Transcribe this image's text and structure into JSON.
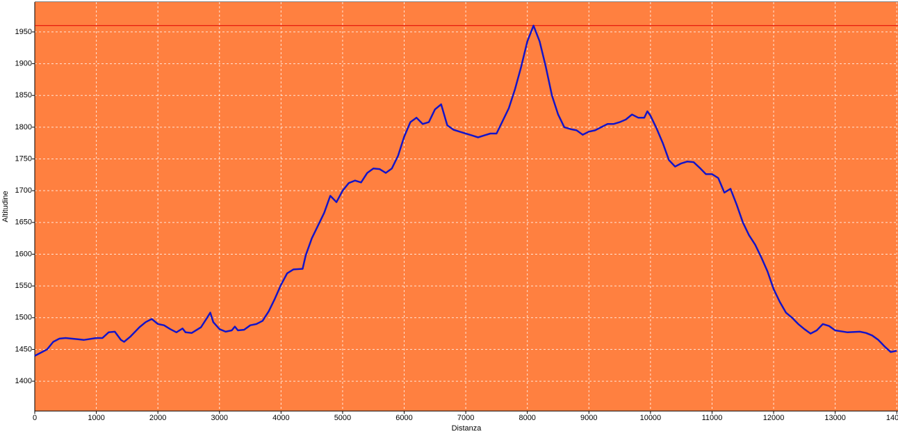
{
  "chart_data": {
    "type": "line",
    "x_label": "Distanza",
    "y_label": "Altitudine",
    "x": [
      0,
      100,
      200,
      300,
      400,
      500,
      700,
      800,
      1000,
      1100,
      1200,
      1300,
      1400,
      1450,
      1550,
      1700,
      1800,
      1900,
      2000,
      2100,
      2200,
      2300,
      2400,
      2450,
      2550,
      2700,
      2800,
      2850,
      2900,
      3000,
      3100,
      3200,
      3250,
      3300,
      3400,
      3500,
      3600,
      3700,
      3800,
      3900,
      4000,
      4100,
      4200,
      4350,
      4400,
      4500,
      4600,
      4700,
      4800,
      4900,
      5000,
      5100,
      5200,
      5300,
      5400,
      5500,
      5600,
      5700,
      5800,
      5900,
      6000,
      6100,
      6200,
      6300,
      6400,
      6500,
      6600,
      6700,
      6800,
      6900,
      7000,
      7100,
      7200,
      7300,
      7400,
      7500,
      7600,
      7700,
      7800,
      7900,
      8000,
      8100,
      8200,
      8300,
      8400,
      8500,
      8600,
      8700,
      8800,
      8900,
      9000,
      9100,
      9200,
      9300,
      9400,
      9500,
      9600,
      9700,
      9800,
      9900,
      9950,
      10000,
      10100,
      10200,
      10300,
      10400,
      10500,
      10600,
      10700,
      10800,
      10900,
      11000,
      11100,
      11200,
      11300,
      11400,
      11500,
      11600,
      11700,
      11800,
      11900,
      12000,
      12100,
      12200,
      12300,
      12400,
      12500,
      12600,
      12700,
      12800,
      12900,
      13000,
      13200,
      13400,
      13500,
      13600,
      13700,
      13800,
      13900,
      14000
    ],
    "series": [
      {
        "color": "#1414c8",
        "values": [
          1440,
          1445,
          1450,
          1462,
          1467,
          1468,
          1466,
          1465,
          1468,
          1468,
          1477,
          1478,
          1465,
          1462,
          1470,
          1485,
          1493,
          1498,
          1490,
          1488,
          1482,
          1477,
          1483,
          1477,
          1476,
          1485,
          1500,
          1508,
          1493,
          1482,
          1478,
          1480,
          1486,
          1480,
          1481,
          1488,
          1490,
          1495,
          1510,
          1530,
          1552,
          1570,
          1576,
          1577,
          1598,
          1625,
          1645,
          1665,
          1692,
          1682,
          1700,
          1712,
          1716,
          1713,
          1728,
          1735,
          1734,
          1728,
          1735,
          1755,
          1785,
          1808,
          1815,
          1805,
          1808,
          1828,
          1836,
          1803,
          1796,
          1793,
          1790,
          1787,
          1784,
          1787,
          1790,
          1790,
          1810,
          1830,
          1860,
          1895,
          1935,
          1960,
          1935,
          1895,
          1850,
          1820,
          1800,
          1797,
          1795,
          1788,
          1793,
          1795,
          1800,
          1805,
          1805,
          1808,
          1812,
          1820,
          1815,
          1815,
          1825,
          1818,
          1798,
          1775,
          1748,
          1738,
          1743,
          1746,
          1745,
          1736,
          1726,
          1726,
          1720,
          1697,
          1703,
          1678,
          1650,
          1630,
          1615,
          1595,
          1573,
          1545,
          1525,
          1508,
          1500,
          1490,
          1482,
          1475,
          1480,
          1490,
          1487,
          1480,
          1477,
          1478,
          1476,
          1472,
          1465,
          1455,
          1446,
          1448
        ]
      }
    ],
    "reference_line": {
      "value": 1960,
      "color": "#e00000"
    },
    "plot_color": "#ff8040",
    "xlim": [
      0,
      14020
    ],
    "xticks": [
      0,
      1000,
      2000,
      3000,
      4000,
      5000,
      6000,
      7000,
      8000,
      9000,
      10000,
      11000,
      12000,
      13000,
      14000
    ],
    "ylim": [
      1353,
      1997
    ],
    "yticks": [
      1400,
      1450,
      1500,
      1550,
      1600,
      1650,
      1700,
      1750,
      1800,
      1850,
      1900,
      1950
    ],
    "grid": true
  }
}
